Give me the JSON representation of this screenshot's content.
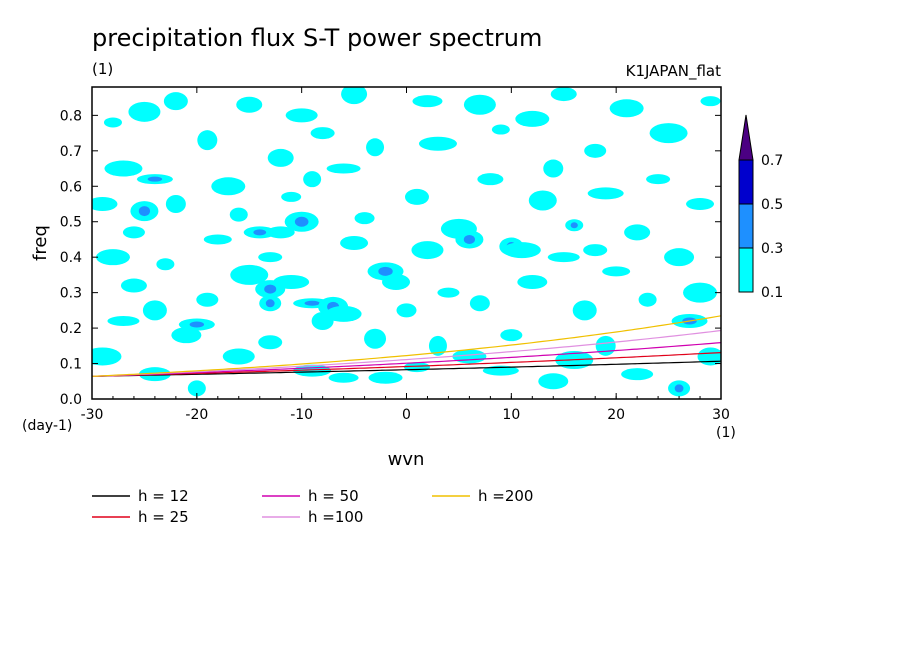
{
  "chart_data": {
    "type": "heatmap",
    "title": "precipitation flux S-T power spectrum",
    "subtitle_left": "(1)",
    "subtitle_right": "K1JAPAN_flat",
    "xlabel": "wvn",
    "ylabel": "freq",
    "x_unit": "(1)",
    "y_unit": "(day-1)",
    "xlim": [
      -30,
      30
    ],
    "ylim": [
      0,
      0.88
    ],
    "x_ticks": [
      -30,
      -20,
      -10,
      0,
      10,
      20,
      30
    ],
    "x_tick_labels": [
      "-30",
      "-20",
      "-10",
      "0",
      "10",
      "20",
      "30"
    ],
    "y_ticks": [
      0.0,
      0.1,
      0.2,
      0.3,
      0.4,
      0.5,
      0.6,
      0.7,
      0.8
    ],
    "y_tick_labels": [
      "0.0",
      "0.1",
      "0.2",
      "0.3",
      "0.4",
      "0.5",
      "0.6",
      "0.7",
      "0.8"
    ],
    "colorbar": {
      "levels": [
        "0.1",
        "0.3",
        "0.5",
        "0.7"
      ],
      "colors": [
        "#00ffff",
        "#1e90ff",
        "#0000cd",
        "#4b0082"
      ]
    },
    "blobs": [
      {
        "x": -28,
        "y": 0.78,
        "level": 1
      },
      {
        "x": -25,
        "y": 0.81,
        "level": 1
      },
      {
        "x": -22,
        "y": 0.84,
        "level": 1
      },
      {
        "x": -27,
        "y": 0.65,
        "level": 1
      },
      {
        "x": -29,
        "y": 0.55,
        "level": 1
      },
      {
        "x": -26,
        "y": 0.47,
        "level": 1
      },
      {
        "x": -24,
        "y": 0.62,
        "level": 2
      },
      {
        "x": -25,
        "y": 0.53,
        "level": 2
      },
      {
        "x": -22,
        "y": 0.55,
        "level": 1
      },
      {
        "x": -28,
        "y": 0.4,
        "level": 1
      },
      {
        "x": -26,
        "y": 0.32,
        "level": 1
      },
      {
        "x": -23,
        "y": 0.38,
        "level": 1
      },
      {
        "x": -27,
        "y": 0.22,
        "level": 1
      },
      {
        "x": -24,
        "y": 0.25,
        "level": 1
      },
      {
        "x": -29,
        "y": 0.12,
        "level": 1
      },
      {
        "x": -21,
        "y": 0.18,
        "level": 1
      },
      {
        "x": -19,
        "y": 0.28,
        "level": 1
      },
      {
        "x": -20,
        "y": 0.21,
        "level": 2
      },
      {
        "x": -18,
        "y": 0.45,
        "level": 1
      },
      {
        "x": -19,
        "y": 0.73,
        "level": 1
      },
      {
        "x": -17,
        "y": 0.6,
        "level": 1
      },
      {
        "x": -15,
        "y": 0.83,
        "level": 1
      },
      {
        "x": -16,
        "y": 0.52,
        "level": 1
      },
      {
        "x": -14,
        "y": 0.47,
        "level": 2
      },
      {
        "x": -13,
        "y": 0.4,
        "level": 1
      },
      {
        "x": -15,
        "y": 0.35,
        "level": 1
      },
      {
        "x": -13,
        "y": 0.31,
        "level": 2
      },
      {
        "x": -13,
        "y": 0.27,
        "level": 2
      },
      {
        "x": -11,
        "y": 0.33,
        "level": 1
      },
      {
        "x": -12,
        "y": 0.47,
        "level": 1
      },
      {
        "x": -11,
        "y": 0.57,
        "level": 1
      },
      {
        "x": -10,
        "y": 0.5,
        "level": 2
      },
      {
        "x": -12,
        "y": 0.68,
        "level": 1
      },
      {
        "x": -9,
        "y": 0.62,
        "level": 1
      },
      {
        "x": -10,
        "y": 0.8,
        "level": 1
      },
      {
        "x": -8,
        "y": 0.75,
        "level": 1
      },
      {
        "x": -9,
        "y": 0.27,
        "level": 2
      },
      {
        "x": -7,
        "y": 0.26,
        "level": 2
      },
      {
        "x": -8,
        "y": 0.22,
        "level": 1
      },
      {
        "x": -6,
        "y": 0.24,
        "level": 1
      },
      {
        "x": -5,
        "y": 0.44,
        "level": 1
      },
      {
        "x": -4,
        "y": 0.51,
        "level": 1
      },
      {
        "x": -6,
        "y": 0.65,
        "level": 1
      },
      {
        "x": -5,
        "y": 0.86,
        "level": 1
      },
      {
        "x": -3,
        "y": 0.71,
        "level": 1
      },
      {
        "x": -16,
        "y": 0.12,
        "level": 1
      },
      {
        "x": -13,
        "y": 0.16,
        "level": 1
      },
      {
        "x": -9,
        "y": 0.08,
        "level": 1
      },
      {
        "x": -6,
        "y": 0.06,
        "level": 1
      },
      {
        "x": -3,
        "y": 0.17,
        "level": 1
      },
      {
        "x": -2,
        "y": 0.36,
        "level": 2
      },
      {
        "x": -1,
        "y": 0.33,
        "level": 1
      },
      {
        "x": 0,
        "y": 0.25,
        "level": 1
      },
      {
        "x": -2,
        "y": 0.06,
        "level": 1
      },
      {
        "x": 1,
        "y": 0.09,
        "level": 1
      },
      {
        "x": 3,
        "y": 0.15,
        "level": 1
      },
      {
        "x": 2,
        "y": 0.42,
        "level": 1
      },
      {
        "x": 1,
        "y": 0.57,
        "level": 1
      },
      {
        "x": 3,
        "y": 0.72,
        "level": 1
      },
      {
        "x": 2,
        "y": 0.84,
        "level": 1
      },
      {
        "x": 4,
        "y": 0.3,
        "level": 1
      },
      {
        "x": 5,
        "y": 0.48,
        "level": 1
      },
      {
        "x": 6,
        "y": 0.45,
        "level": 2
      },
      {
        "x": 7,
        "y": 0.27,
        "level": 1
      },
      {
        "x": 6,
        "y": 0.12,
        "level": 1
      },
      {
        "x": 8,
        "y": 0.62,
        "level": 1
      },
      {
        "x": 9,
        "y": 0.76,
        "level": 1
      },
      {
        "x": 7,
        "y": 0.83,
        "level": 1
      },
      {
        "x": 10,
        "y": 0.43,
        "level": 2
      },
      {
        "x": 11,
        "y": 0.42,
        "level": 1
      },
      {
        "x": 12,
        "y": 0.33,
        "level": 1
      },
      {
        "x": 10,
        "y": 0.18,
        "level": 1
      },
      {
        "x": 9,
        "y": 0.08,
        "level": 1
      },
      {
        "x": 13,
        "y": 0.56,
        "level": 1
      },
      {
        "x": 14,
        "y": 0.65,
        "level": 1
      },
      {
        "x": 12,
        "y": 0.79,
        "level": 1
      },
      {
        "x": 15,
        "y": 0.86,
        "level": 1
      },
      {
        "x": 16,
        "y": 0.49,
        "level": 2
      },
      {
        "x": 15,
        "y": 0.4,
        "level": 1
      },
      {
        "x": 17,
        "y": 0.25,
        "level": 1
      },
      {
        "x": 16,
        "y": 0.11,
        "level": 1
      },
      {
        "x": 14,
        "y": 0.05,
        "level": 1
      },
      {
        "x": 18,
        "y": 0.7,
        "level": 1
      },
      {
        "x": 19,
        "y": 0.58,
        "level": 1
      },
      {
        "x": 20,
        "y": 0.36,
        "level": 1
      },
      {
        "x": 19,
        "y": 0.15,
        "level": 1
      },
      {
        "x": 21,
        "y": 0.82,
        "level": 1
      },
      {
        "x": 22,
        "y": 0.47,
        "level": 1
      },
      {
        "x": 23,
        "y": 0.28,
        "level": 1
      },
      {
        "x": 22,
        "y": 0.07,
        "level": 1
      },
      {
        "x": 24,
        "y": 0.62,
        "level": 1
      },
      {
        "x": 25,
        "y": 0.75,
        "level": 1
      },
      {
        "x": 26,
        "y": 0.4,
        "level": 1
      },
      {
        "x": 26,
        "y": 0.03,
        "level": 2
      },
      {
        "x": 27,
        "y": 0.22,
        "level": 2
      },
      {
        "x": 28,
        "y": 0.55,
        "level": 1
      },
      {
        "x": 29,
        "y": 0.84,
        "level": 1
      },
      {
        "x": 28,
        "y": 0.3,
        "level": 1
      },
      {
        "x": 29,
        "y": 0.12,
        "level": 1
      },
      {
        "x": -20,
        "y": 0.03,
        "level": 1
      },
      {
        "x": -24,
        "y": 0.07,
        "level": 1
      },
      {
        "x": 18,
        "y": 0.42,
        "level": 1
      }
    ],
    "series": [
      {
        "name": "h = 12",
        "color": "#000000",
        "h": 12
      },
      {
        "name": "h = 25",
        "color": "#e0001a",
        "h": 25
      },
      {
        "name": "h = 50",
        "color": "#d000b0",
        "h": 50
      },
      {
        "name": "h =100",
        "color": "#e090e0",
        "h": 100
      },
      {
        "name": "h =200",
        "color": "#f0c000",
        "h": 200
      }
    ]
  }
}
